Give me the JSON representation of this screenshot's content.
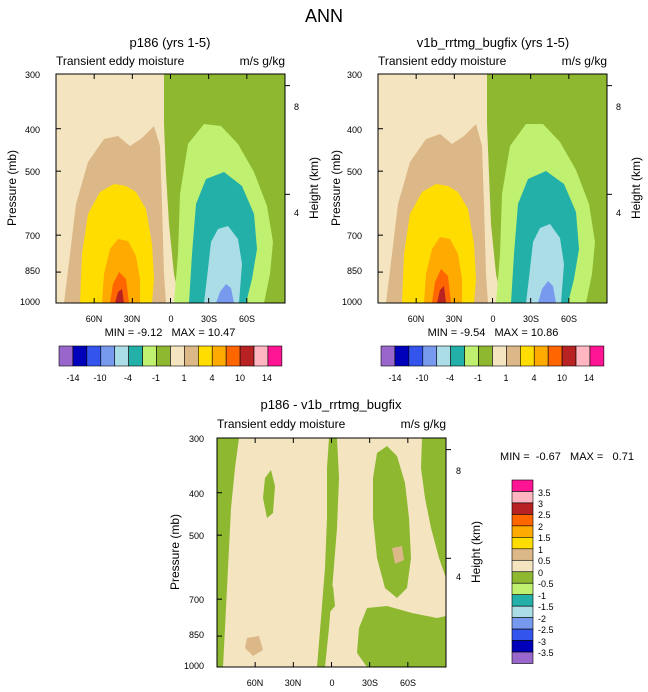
{
  "page_title": "ANN",
  "colors": {
    "contour_palette": [
      "#9966cc",
      "#0000bb",
      "#3355ee",
      "#7799ee",
      "#aadde6",
      "#22b0a8",
      "#c0f070",
      "#8db830",
      "#f4e4c0",
      "#dcb888",
      "#ffdd00",
      "#ffaa00",
      "#ff6600",
      "#b82222",
      "#ffb6c1",
      "#ff1493"
    ],
    "diff_palette": [
      "#9966cc",
      "#0000bb",
      "#3355ee",
      "#7799ee",
      "#aadde6",
      "#22b0a8",
      "#c0f070",
      "#8db830",
      "#f4e4c0",
      "#dcb888",
      "#ffdd00",
      "#ffaa00",
      "#ff6600",
      "#b82222",
      "#ffb6c1",
      "#ff1493"
    ]
  },
  "chart_data": [
    {
      "type": "heatmap",
      "title": "p186 (yrs 1-5)",
      "subtitle_left": "Transient eddy moisture",
      "subtitle_right": "m/s g/kg",
      "ylabel": "Pressure (mb)",
      "ylabel_right": "Height (km)",
      "yticks": [
        300,
        400,
        500,
        700,
        850,
        1000
      ],
      "yticks_right": [
        8,
        4
      ],
      "xticks": [
        "60N",
        "30N",
        "0",
        "30S",
        "60S"
      ],
      "ylim": [
        300,
        1000
      ],
      "xlim": [
        90,
        -90
      ],
      "min_max": "MIN = -9.12   MAX = 10.47",
      "min": -9.12,
      "max": 10.47,
      "colorbar_labels": [
        "-14",
        "-10",
        "-4",
        "-1",
        "1",
        "4",
        "10",
        "14"
      ]
    },
    {
      "type": "heatmap",
      "title": "v1b_rrtmg_bugfix (yrs 1-5)",
      "subtitle_left": "Transient eddy moisture",
      "subtitle_right": "m/s g/kg",
      "ylabel": "Pressure (mb)",
      "ylabel_right": "Height (km)",
      "yticks": [
        300,
        400,
        500,
        700,
        850,
        1000
      ],
      "yticks_right": [
        8,
        4
      ],
      "xticks": [
        "60N",
        "30N",
        "0",
        "30S",
        "60S"
      ],
      "ylim": [
        300,
        1000
      ],
      "xlim": [
        90,
        -90
      ],
      "min_max": "MIN = -9.54   MAX = 10.86",
      "min": -9.54,
      "max": 10.86,
      "colorbar_labels": [
        "-14",
        "-10",
        "-4",
        "-1",
        "1",
        "4",
        "10",
        "14"
      ]
    },
    {
      "type": "heatmap",
      "title": "p186 - v1b_rrtmg_bugfix",
      "subtitle_left": "Transient eddy moisture",
      "subtitle_right": "m/s g/kg",
      "ylabel": "Pressure (mb)",
      "ylabel_right": "Height (km)",
      "yticks": [
        300,
        400,
        500,
        700,
        850,
        1000
      ],
      "yticks_right": [
        8,
        4
      ],
      "xticks": [
        "60N",
        "30N",
        "0",
        "30S",
        "60S"
      ],
      "ylim": [
        300,
        1000
      ],
      "xlim": [
        90,
        -90
      ],
      "min_max": "MIN =  -0.67   MAX =   0.71",
      "min": -0.67,
      "max": 0.71,
      "colorbar_labels": [
        "3.5",
        "3",
        "2.5",
        "2",
        "1.5",
        "1",
        "0.5",
        "0",
        "-0.5",
        "-1",
        "-1.5",
        "-2",
        "-2.5",
        "-3",
        "-3.5"
      ]
    }
  ]
}
